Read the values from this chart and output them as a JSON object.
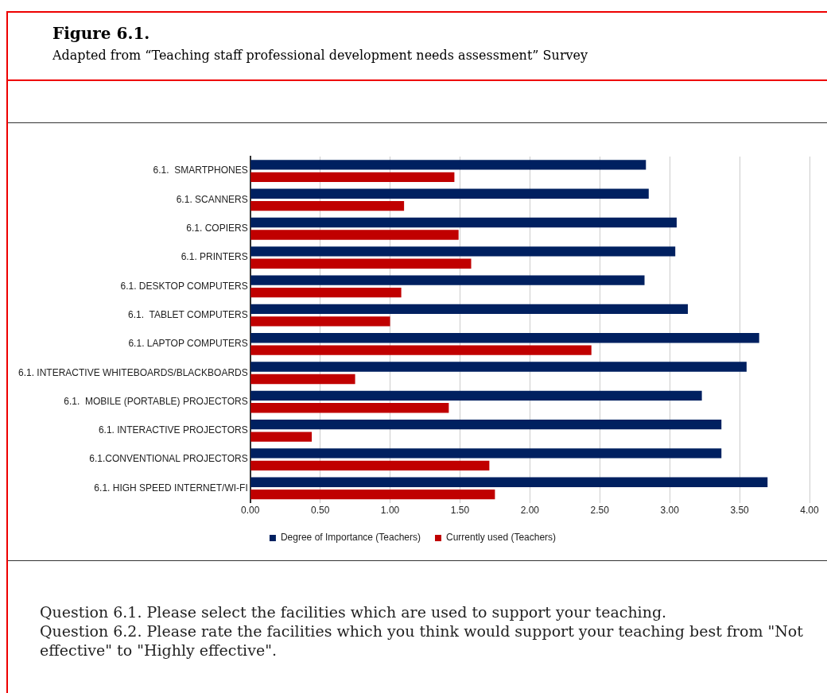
{
  "chart_data": {
    "type": "bar",
    "orientation": "horizontal",
    "title": "Figure 6.1.",
    "subtitle": "Adapted from “Teaching staff professional development needs assessment” Survey",
    "categories": [
      "6.1.  SMARTPHONES",
      "6.1. SCANNERS",
      "6.1. COPIERS",
      "6.1. PRINTERS",
      "6.1. DESKTOP COMPUTERS",
      "6.1.  TABLET COMPUTERS",
      "6.1. LAPTOP COMPUTERS",
      "6.1. INTERACTIVE WHITEBOARDS/BLACKBOARDS",
      "6.1.  MOBILE (PORTABLE) PROJECTORS",
      "6.1. INTERACTIVE PROJECTORS",
      "6.1.CONVENTIONAL PROJECTORS",
      "6.1. HIGH SPEED INTERNET/WI-FI"
    ],
    "series": [
      {
        "name": "Degree of Importance (Teachers)",
        "color": "#002060",
        "values": [
          2.83,
          2.85,
          3.05,
          3.04,
          2.82,
          3.13,
          3.64,
          3.55,
          3.23,
          3.37,
          3.37,
          3.7
        ]
      },
      {
        "name": "Currently used (Teachers)",
        "color": "#c00000",
        "values": [
          1.46,
          1.1,
          1.49,
          1.58,
          1.08,
          1.0,
          2.44,
          0.75,
          1.42,
          0.44,
          1.71,
          1.75
        ]
      }
    ],
    "xlim": [
      0,
      4
    ],
    "xticks": [
      {
        "value": 0,
        "label": "0.00"
      },
      {
        "value": 0.5,
        "label": "0.50"
      },
      {
        "value": 1,
        "label": "1.00"
      },
      {
        "value": 1.5,
        "label": "1.50"
      },
      {
        "value": 2,
        "label": "2.00"
      },
      {
        "value": 2.5,
        "label": "2.50"
      },
      {
        "value": 3,
        "label": "3.00"
      },
      {
        "value": 3.5,
        "label": "3.50"
      },
      {
        "value": 4,
        "label": "4.00"
      }
    ],
    "grid": "x",
    "legend": "bottom",
    "annotations": [
      "Question 6.1. Please select the facilities which are used to support your teaching.",
      "Question 6.2. Please rate the facilities which you think would support your teaching best from \"Not effective\" to \"Highly effective\"."
    ]
  }
}
